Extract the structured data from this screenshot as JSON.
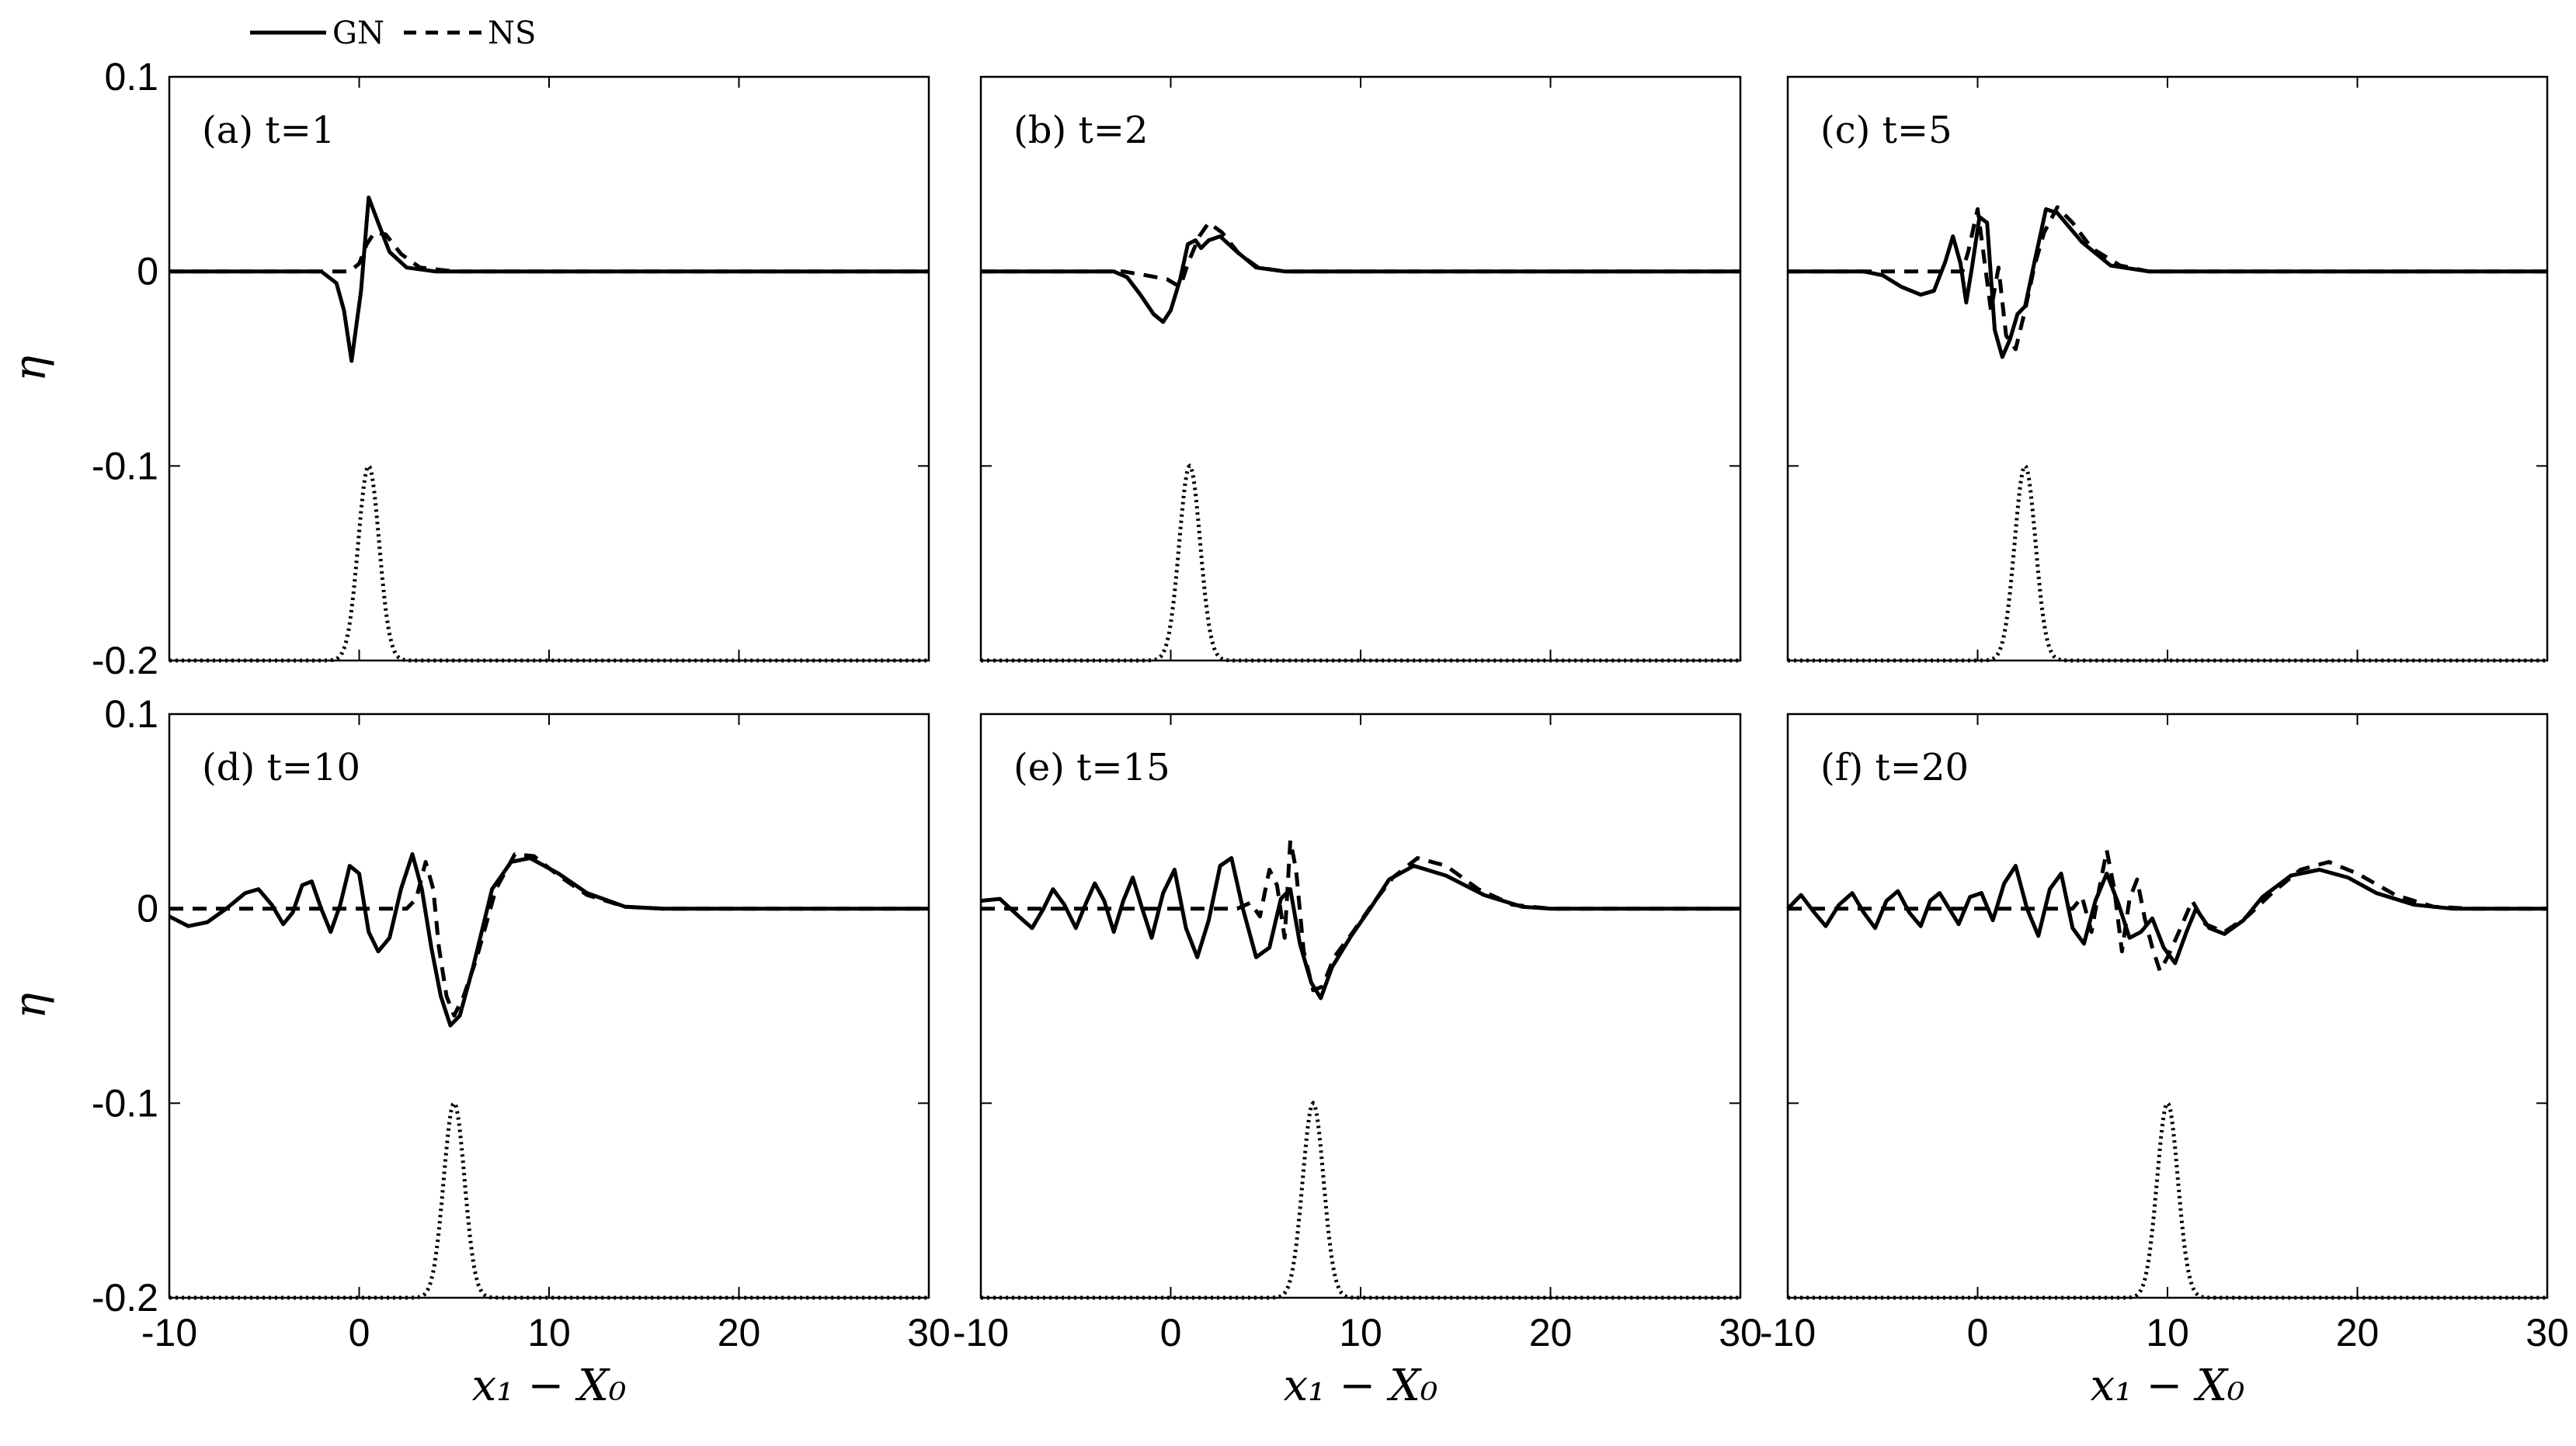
{
  "legend": {
    "gn_label": "GN",
    "ns_label": "NS"
  },
  "chart_data": {
    "type": "line",
    "ylabel": "η",
    "xlabel": "x₁ − X₀",
    "xlim": [
      -10,
      30
    ],
    "ylim": [
      -0.2,
      0.1
    ],
    "xticks": [
      "-10",
      "0",
      "10",
      "20",
      "30"
    ],
    "yticks": [
      "0.1",
      "0",
      "-0.1",
      "-0.2"
    ],
    "panels": [
      {
        "label": "(a) t=1",
        "gn": [
          [
            -10,
            0
          ],
          [
            -2,
            0
          ],
          [
            -1.2,
            -0.006
          ],
          [
            -0.8,
            -0.02
          ],
          [
            -0.4,
            -0.046
          ],
          [
            0.1,
            -0.01
          ],
          [
            0.5,
            0.038
          ],
          [
            1.0,
            0.025
          ],
          [
            1.6,
            0.01
          ],
          [
            2.5,
            0.002
          ],
          [
            4,
            0
          ],
          [
            30,
            0
          ]
        ],
        "ns": [
          [
            -10,
            0
          ],
          [
            -0.5,
            0
          ],
          [
            0,
            0.004
          ],
          [
            0.4,
            0.014
          ],
          [
            0.8,
            0.02
          ],
          [
            1.4,
            0.019
          ],
          [
            2.2,
            0.009
          ],
          [
            3.2,
            0.002
          ],
          [
            5,
            0
          ],
          [
            30,
            0
          ]
        ],
        "gauss_center": 0.5
      },
      {
        "label": "(b) t=2",
        "gn": [
          [
            -10,
            0
          ],
          [
            -3,
            0
          ],
          [
            -2.3,
            -0.003
          ],
          [
            -1.6,
            -0.012
          ],
          [
            -0.9,
            -0.022
          ],
          [
            -0.4,
            -0.026
          ],
          [
            0,
            -0.02
          ],
          [
            0.5,
            -0.004
          ],
          [
            0.9,
            0.014
          ],
          [
            1.3,
            0.016
          ],
          [
            1.6,
            0.012
          ],
          [
            2.0,
            0.016
          ],
          [
            2.6,
            0.018
          ],
          [
            3.5,
            0.01
          ],
          [
            4.5,
            0.002
          ],
          [
            6,
            0
          ],
          [
            30,
            0
          ]
        ],
        "ns": [
          [
            -10,
            0
          ],
          [
            -2.5,
            0
          ],
          [
            -1.3,
            -0.002
          ],
          [
            -0.2,
            -0.004
          ],
          [
            0.5,
            -0.008
          ],
          [
            0.9,
            0.004
          ],
          [
            1.5,
            0.018
          ],
          [
            2.0,
            0.025
          ],
          [
            2.7,
            0.02
          ],
          [
            3.6,
            0.009
          ],
          [
            4.6,
            0.002
          ],
          [
            6,
            0
          ],
          [
            30,
            0
          ]
        ],
        "gauss_center": 1.0
      },
      {
        "label": "(c) t=5",
        "gn": [
          [
            -10,
            0
          ],
          [
            -6,
            0
          ],
          [
            -5,
            -0.002
          ],
          [
            -4,
            -0.008
          ],
          [
            -3,
            -0.012
          ],
          [
            -2.3,
            -0.01
          ],
          [
            -1.7,
            0.005
          ],
          [
            -1.3,
            0.018
          ],
          [
            -0.9,
            0.004
          ],
          [
            -0.6,
            -0.016
          ],
          [
            -0.3,
            0.002
          ],
          [
            0.1,
            0.028
          ],
          [
            0.5,
            0.025
          ],
          [
            0.9,
            -0.03
          ],
          [
            1.3,
            -0.044
          ],
          [
            1.7,
            -0.035
          ],
          [
            2.1,
            -0.022
          ],
          [
            2.5,
            -0.018
          ],
          [
            3,
            0.005
          ],
          [
            3.6,
            0.032
          ],
          [
            4.2,
            0.03
          ],
          [
            5.5,
            0.015
          ],
          [
            7,
            0.003
          ],
          [
            9,
            0
          ],
          [
            30,
            0
          ]
        ],
        "ns": [
          [
            -10,
            0
          ],
          [
            -1.5,
            0
          ],
          [
            -0.8,
            0
          ],
          [
            -0.5,
            0.01
          ],
          [
            0,
            0.032
          ],
          [
            0.3,
            0.01
          ],
          [
            0.7,
            -0.02
          ],
          [
            1.1,
            0.002
          ],
          [
            1.5,
            -0.033
          ],
          [
            2.0,
            -0.04
          ],
          [
            2.5,
            -0.02
          ],
          [
            3.0,
            0.003
          ],
          [
            3.5,
            0.02
          ],
          [
            4.2,
            0.033
          ],
          [
            5.0,
            0.025
          ],
          [
            6,
            0.012
          ],
          [
            7.5,
            0.003
          ],
          [
            9,
            0
          ],
          [
            30,
            0
          ]
        ],
        "gauss_center": 2.5
      },
      {
        "label": "(d) t=10",
        "gn": [
          [
            -10,
            -0.004
          ],
          [
            -9,
            -0.009
          ],
          [
            -8,
            -0.007
          ],
          [
            -7,
            0
          ],
          [
            -6,
            0.008
          ],
          [
            -5.3,
            0.01
          ],
          [
            -4.6,
            0.002
          ],
          [
            -4,
            -0.008
          ],
          [
            -3.5,
            -0.002
          ],
          [
            -3,
            0.012
          ],
          [
            -2.5,
            0.014
          ],
          [
            -2,
            0
          ],
          [
            -1.5,
            -0.012
          ],
          [
            -1,
            0.002
          ],
          [
            -0.5,
            0.022
          ],
          [
            0,
            0.018
          ],
          [
            0.5,
            -0.012
          ],
          [
            1,
            -0.022
          ],
          [
            1.6,
            -0.015
          ],
          [
            2.2,
            0.01
          ],
          [
            2.8,
            0.028
          ],
          [
            3.3,
            0.01
          ],
          [
            3.8,
            -0.02
          ],
          [
            4.3,
            -0.045
          ],
          [
            4.8,
            -0.06
          ],
          [
            5.3,
            -0.055
          ],
          [
            6,
            -0.03
          ],
          [
            7,
            0.01
          ],
          [
            8,
            0.024
          ],
          [
            9,
            0.026
          ],
          [
            10.5,
            0.018
          ],
          [
            12,
            0.008
          ],
          [
            14,
            0.001
          ],
          [
            16,
            0
          ],
          [
            30,
            0
          ]
        ],
        "ns": [
          [
            -10,
            0
          ],
          [
            1.5,
            0
          ],
          [
            2.5,
            0
          ],
          [
            3,
            0.005
          ],
          [
            3.5,
            0.024
          ],
          [
            3.9,
            0.01
          ],
          [
            4.2,
            -0.02
          ],
          [
            4.6,
            -0.045
          ],
          [
            5,
            -0.055
          ],
          [
            5.5,
            -0.045
          ],
          [
            6.2,
            -0.025
          ],
          [
            7.2,
            0.01
          ],
          [
            8.2,
            0.028
          ],
          [
            9.2,
            0.027
          ],
          [
            10.5,
            0.017
          ],
          [
            12,
            0.007
          ],
          [
            14,
            0.001
          ],
          [
            16,
            0
          ],
          [
            30,
            0
          ]
        ],
        "gauss_center": 5.0
      },
      {
        "label": "(e) t=15",
        "gn": [
          [
            -10,
            0.004
          ],
          [
            -9,
            0.005
          ],
          [
            -8,
            -0.004
          ],
          [
            -7.3,
            -0.01
          ],
          [
            -6.7,
            0
          ],
          [
            -6.2,
            0.01
          ],
          [
            -5.6,
            0.002
          ],
          [
            -5,
            -0.01
          ],
          [
            -4.5,
            0.002
          ],
          [
            -4,
            0.013
          ],
          [
            -3.5,
            0.004
          ],
          [
            -3,
            -0.012
          ],
          [
            -2.5,
            0.004
          ],
          [
            -2,
            0.016
          ],
          [
            -1.5,
            0
          ],
          [
            -1,
            -0.015
          ],
          [
            -0.4,
            0.008
          ],
          [
            0.2,
            0.02
          ],
          [
            0.8,
            -0.01
          ],
          [
            1.4,
            -0.025
          ],
          [
            2,
            -0.006
          ],
          [
            2.6,
            0.022
          ],
          [
            3.2,
            0.026
          ],
          [
            3.8,
            0
          ],
          [
            4.5,
            -0.025
          ],
          [
            5.2,
            -0.02
          ],
          [
            5.8,
            0.005
          ],
          [
            6.3,
            0.01
          ],
          [
            6.8,
            -0.018
          ],
          [
            7.4,
            -0.038
          ],
          [
            7.9,
            -0.046
          ],
          [
            8.5,
            -0.03
          ],
          [
            9.5,
            -0.014
          ],
          [
            10.5,
            0
          ],
          [
            11.5,
            0.015
          ],
          [
            12.8,
            0.022
          ],
          [
            14.5,
            0.017
          ],
          [
            16.5,
            0.007
          ],
          [
            18.5,
            0.001
          ],
          [
            20,
            0
          ],
          [
            30,
            0
          ]
        ],
        "ns": [
          [
            -10,
            0
          ],
          [
            3.5,
            0
          ],
          [
            4.2,
            0.003
          ],
          [
            4.7,
            -0.004
          ],
          [
            5.2,
            0.02
          ],
          [
            5.6,
            0.012
          ],
          [
            6.0,
            -0.015
          ],
          [
            6.3,
            0.035
          ],
          [
            6.6,
            0.02
          ],
          [
            7.0,
            -0.022
          ],
          [
            7.5,
            -0.042
          ],
          [
            8.0,
            -0.04
          ],
          [
            8.6,
            -0.025
          ],
          [
            9.6,
            -0.012
          ],
          [
            10.6,
            0.002
          ],
          [
            11.7,
            0.016
          ],
          [
            13,
            0.026
          ],
          [
            14.5,
            0.022
          ],
          [
            16.2,
            0.01
          ],
          [
            18,
            0.002
          ],
          [
            20,
            0
          ],
          [
            30,
            0
          ]
        ],
        "gauss_center": 7.5
      },
      {
        "label": "(f) t=20",
        "gn": [
          [
            -10,
            0
          ],
          [
            -9.3,
            0.007
          ],
          [
            -8.6,
            -0.002
          ],
          [
            -8,
            -0.009
          ],
          [
            -7.3,
            0.002
          ],
          [
            -6.6,
            0.008
          ],
          [
            -6,
            -0.002
          ],
          [
            -5.4,
            -0.01
          ],
          [
            -4.8,
            0.004
          ],
          [
            -4.2,
            0.009
          ],
          [
            -3.6,
            -0.002
          ],
          [
            -3,
            -0.009
          ],
          [
            -2.5,
            0.004
          ],
          [
            -2,
            0.008
          ],
          [
            -1.5,
            0
          ],
          [
            -1,
            -0.008
          ],
          [
            -0.4,
            0.006
          ],
          [
            0.2,
            0.008
          ],
          [
            0.8,
            -0.006
          ],
          [
            1.4,
            0.013
          ],
          [
            2,
            0.022
          ],
          [
            2.6,
            0
          ],
          [
            3.2,
            -0.014
          ],
          [
            3.8,
            0.01
          ],
          [
            4.4,
            0.018
          ],
          [
            5,
            -0.01
          ],
          [
            5.6,
            -0.018
          ],
          [
            6.2,
            0.004
          ],
          [
            6.8,
            0.018
          ],
          [
            7.4,
            0.003
          ],
          [
            8,
            -0.015
          ],
          [
            8.6,
            -0.012
          ],
          [
            9.2,
            -0.005
          ],
          [
            9.8,
            -0.02
          ],
          [
            10.4,
            -0.028
          ],
          [
            11,
            -0.012
          ],
          [
            11.5,
            0
          ],
          [
            12.2,
            -0.01
          ],
          [
            13,
            -0.013
          ],
          [
            14,
            -0.006
          ],
          [
            15,
            0.006
          ],
          [
            16.5,
            0.017
          ],
          [
            18,
            0.02
          ],
          [
            19.5,
            0.016
          ],
          [
            21,
            0.008
          ],
          [
            23,
            0.002
          ],
          [
            25,
            0
          ],
          [
            30,
            0
          ]
        ],
        "ns": [
          [
            -10,
            0
          ],
          [
            5,
            0
          ],
          [
            5.5,
            0.006
          ],
          [
            6,
            -0.012
          ],
          [
            6.4,
            0.01
          ],
          [
            6.8,
            0.03
          ],
          [
            7.2,
            0.01
          ],
          [
            7.6,
            -0.022
          ],
          [
            8.0,
            0.005
          ],
          [
            8.4,
            0.015
          ],
          [
            8.8,
            -0.005
          ],
          [
            9.2,
            -0.02
          ],
          [
            9.6,
            -0.032
          ],
          [
            10,
            -0.025
          ],
          [
            10.6,
            -0.012
          ],
          [
            11.3,
            0.004
          ],
          [
            12,
            -0.008
          ],
          [
            13,
            -0.012
          ],
          [
            14.2,
            -0.004
          ],
          [
            15.5,
            0.008
          ],
          [
            17,
            0.02
          ],
          [
            18.5,
            0.024
          ],
          [
            20,
            0.018
          ],
          [
            22,
            0.007
          ],
          [
            24,
            0.001
          ],
          [
            26,
            0
          ],
          [
            30,
            0
          ]
        ],
        "gauss_center": 10.0
      }
    ]
  }
}
